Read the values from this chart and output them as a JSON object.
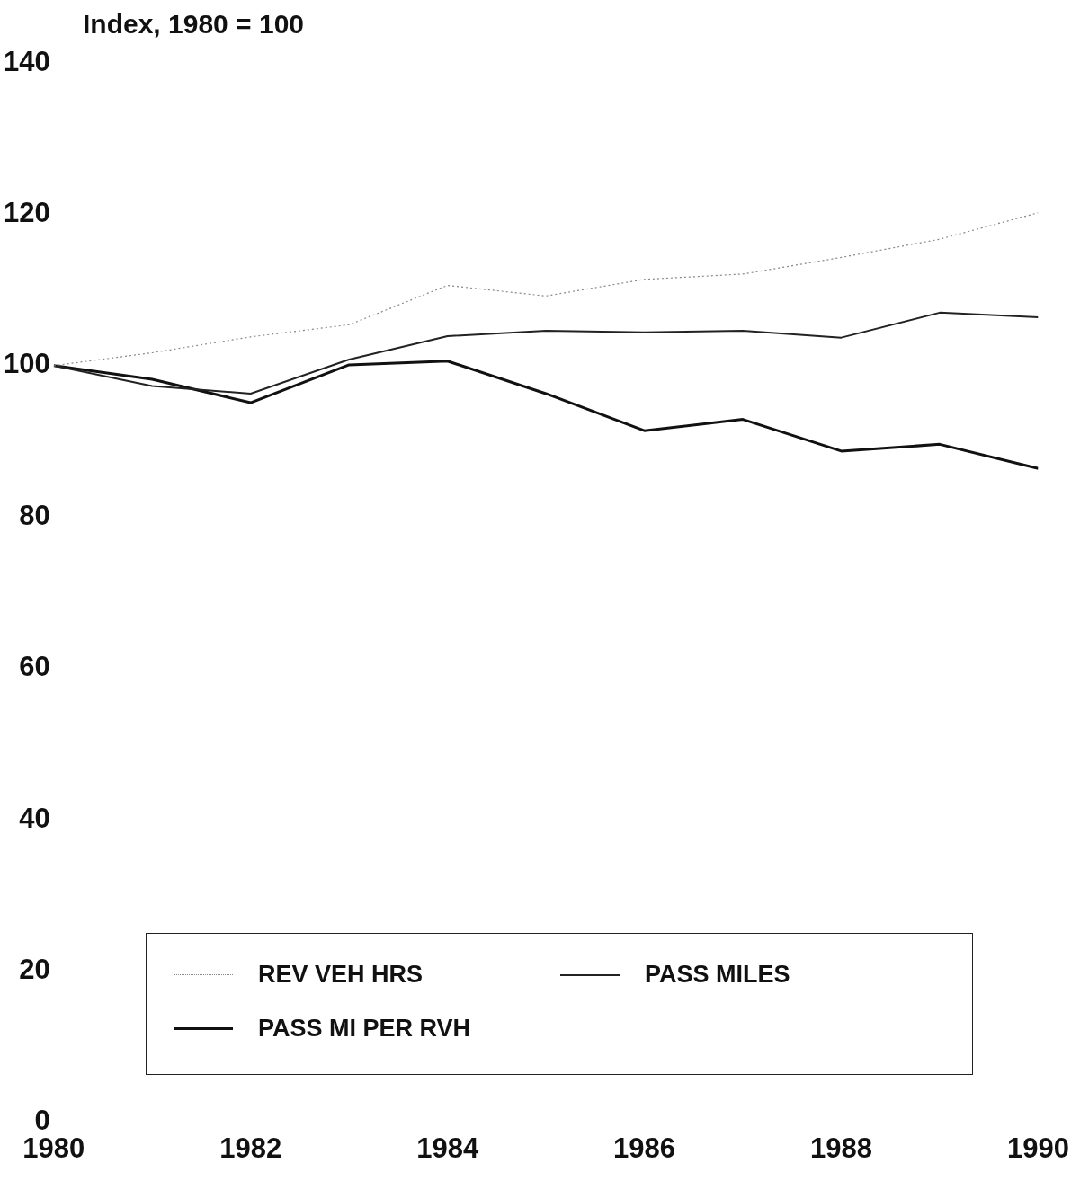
{
  "chart_data": {
    "type": "line",
    "ylabel": "Index,  1980 = 100",
    "x": [
      1980,
      1981,
      1982,
      1983,
      1984,
      1985,
      1986,
      1987,
      1988,
      1989,
      1990
    ],
    "series": [
      {
        "name": "REV VEH HRS",
        "color": "#888888",
        "line_style": "dotted",
        "values": [
          100,
          101.7,
          103.8,
          105.4,
          110.6,
          109.2,
          111.4,
          112.1,
          114.3,
          116.7,
          120.2
        ]
      },
      {
        "name": "PASS MILES",
        "color": "#222222",
        "line_style": "solid",
        "values": [
          100,
          97.3,
          96.3,
          100.8,
          103.9,
          104.6,
          104.4,
          104.6,
          103.7,
          107.0,
          106.4
        ]
      },
      {
        "name": "PASS MI PER RVH",
        "color": "#111111",
        "line_style": "solid",
        "values": [
          100,
          98.2,
          95.1,
          100.1,
          100.6,
          96.3,
          91.4,
          92.9,
          88.7,
          89.6,
          86.4
        ]
      }
    ],
    "xlim": [
      1980,
      1990
    ],
    "xticks": [
      1980,
      1982,
      1984,
      1986,
      1988,
      1990
    ],
    "ylim": [
      0,
      140
    ],
    "yticks": [
      0,
      20,
      40,
      60,
      80,
      100,
      120,
      140
    ],
    "grid": false,
    "legend": "bottom",
    "marker": "none"
  }
}
